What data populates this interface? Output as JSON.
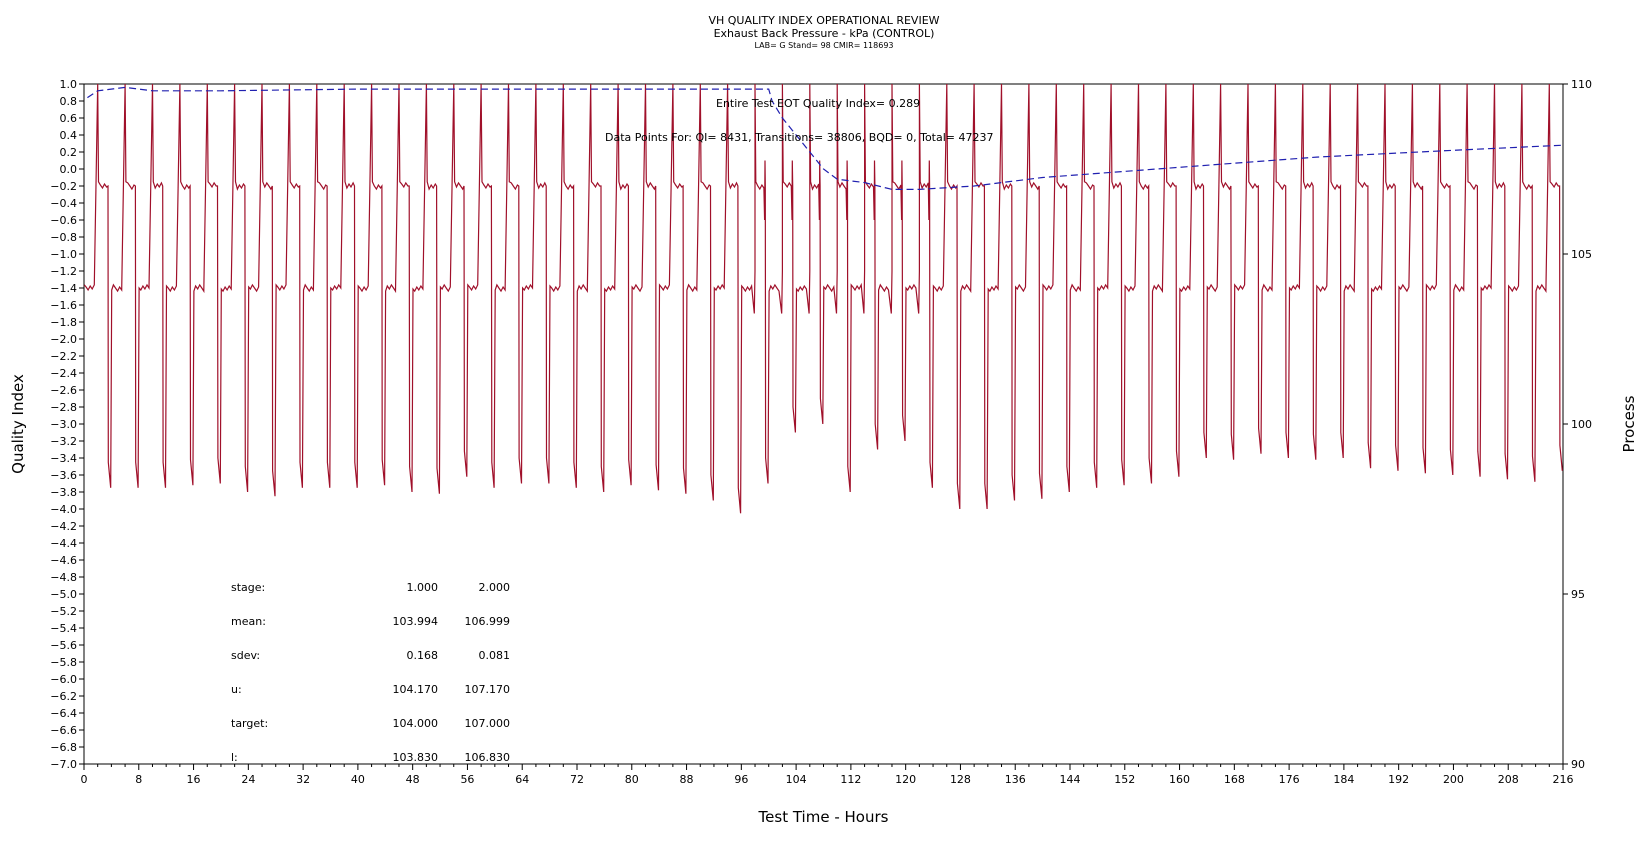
{
  "header": {
    "title": "VH QUALITY INDEX OPERATIONAL REVIEW",
    "subtitle": "Exhaust Back Pressure - kPa (CONTROL)",
    "info": "LAB= G Stand= 98 CMIR= 118693"
  },
  "chart_data": {
    "type": "line",
    "xlabel": "Test Time - Hours",
    "ylabel": "Quality Index",
    "y2label": "Process",
    "xlim": [
      0,
      216
    ],
    "ylim": [
      -7.0,
      1.0
    ],
    "y2lim": [
      90,
      110
    ],
    "xticks": [
      "0",
      "8",
      "16",
      "24",
      "32",
      "40",
      "48",
      "56",
      "64",
      "72",
      "80",
      "88",
      "96",
      "104",
      "112",
      "120",
      "128",
      "136",
      "144",
      "152",
      "160",
      "168",
      "176",
      "184",
      "192",
      "200",
      "208",
      "216"
    ],
    "yticks": [
      "1.0",
      "0.8",
      "0.6",
      "0.4",
      "0.2",
      "0.0",
      "-0.2",
      "-0.4",
      "-0.6",
      "-0.8",
      "-1.0",
      "-1.2",
      "-1.4",
      "-1.6",
      "-1.8",
      "-2.0",
      "-2.2",
      "-2.4",
      "-2.6",
      "-2.8",
      "-3.0",
      "-3.2",
      "-3.4",
      "-3.6",
      "-3.8",
      "-4.0",
      "-4.2",
      "-4.4",
      "-4.6",
      "-4.8",
      "-5.0",
      "-5.2",
      "-5.4",
      "-5.6",
      "-5.8",
      "-6.0",
      "-6.2",
      "-6.4",
      "-6.6",
      "-6.8",
      "-7.0"
    ],
    "y2ticks": [
      "110",
      "105",
      "100",
      "95",
      "90"
    ],
    "annotations": {
      "eot": "Entire Test EOT Quality Index=   0.289",
      "points": "Data Points For: QI=  8431, Transitions= 38806, BQD=     0, Total= 47237"
    },
    "series": [
      {
        "axis": "left",
        "color": "#a0102a",
        "cycle_hours": 4.0,
        "stage1_level": -1.4,
        "stage2_level": -0.2,
        "peak": 1.0,
        "cycles": [
          {
            "x": 0,
            "low": -3.75
          },
          {
            "x": 4,
            "low": -3.75
          },
          {
            "x": 8,
            "low": -3.75
          },
          {
            "x": 12,
            "low": -3.72
          },
          {
            "x": 16,
            "low": -3.7
          },
          {
            "x": 20,
            "low": -3.8
          },
          {
            "x": 24,
            "low": -3.85
          },
          {
            "x": 28,
            "low": -3.75
          },
          {
            "x": 32,
            "low": -3.75
          },
          {
            "x": 36,
            "low": -3.75
          },
          {
            "x": 40,
            "low": -3.72
          },
          {
            "x": 44,
            "low": -3.8
          },
          {
            "x": 48,
            "low": -3.82
          },
          {
            "x": 52,
            "low": -3.62
          },
          {
            "x": 56,
            "low": -3.75
          },
          {
            "x": 60,
            "low": -3.7
          },
          {
            "x": 64,
            "low": -3.7
          },
          {
            "x": 68,
            "low": -3.75
          },
          {
            "x": 72,
            "low": -3.8
          },
          {
            "x": 76,
            "low": -3.72
          },
          {
            "x": 80,
            "low": -3.78
          },
          {
            "x": 84,
            "low": -3.82
          },
          {
            "x": 88,
            "low": -3.9
          },
          {
            "x": 92,
            "low": -4.05
          },
          {
            "x": 96,
            "low": -3.7
          },
          {
            "x": 100,
            "low": -3.1
          },
          {
            "x": 104,
            "low": -3.0
          },
          {
            "x": 108,
            "low": -3.8
          },
          {
            "x": 112,
            "low": -3.3
          },
          {
            "x": 116,
            "low": -3.2
          },
          {
            "x": 120,
            "low": -3.75
          },
          {
            "x": 124,
            "low": -4.0
          },
          {
            "x": 128,
            "low": -4.0
          },
          {
            "x": 132,
            "low": -3.9
          },
          {
            "x": 136,
            "low": -3.88
          },
          {
            "x": 140,
            "low": -3.8
          },
          {
            "x": 144,
            "low": -3.75
          },
          {
            "x": 148,
            "low": -3.72
          },
          {
            "x": 152,
            "low": -3.7
          },
          {
            "x": 156,
            "low": -3.62
          },
          {
            "x": 160,
            "low": -3.4
          },
          {
            "x": 164,
            "low": -3.42
          },
          {
            "x": 168,
            "low": -3.35
          },
          {
            "x": 172,
            "low": -3.4
          },
          {
            "x": 176,
            "low": -3.42
          },
          {
            "x": 180,
            "low": -3.4
          },
          {
            "x": 184,
            "low": -3.52
          },
          {
            "x": 188,
            "low": -3.55
          },
          {
            "x": 192,
            "low": -3.58
          },
          {
            "x": 196,
            "low": -3.6
          },
          {
            "x": 200,
            "low": -3.62
          },
          {
            "x": 204,
            "low": -3.65
          },
          {
            "x": 208,
            "low": -3.68
          },
          {
            "x": 212,
            "low": -3.55
          }
        ]
      },
      {
        "axis": "right",
        "color": "#2020b0",
        "style": "dashed",
        "points": [
          [
            0.5,
            109.6
          ],
          [
            2,
            109.8
          ],
          [
            6,
            109.9
          ],
          [
            10,
            109.8
          ],
          [
            20,
            109.8
          ],
          [
            40,
            109.85
          ],
          [
            60,
            109.85
          ],
          [
            90,
            109.85
          ],
          [
            100,
            109.85
          ],
          [
            100.5,
            109.5
          ],
          [
            102,
            109.0
          ],
          [
            104,
            108.5
          ],
          [
            106,
            108.0
          ],
          [
            108,
            107.5
          ],
          [
            110,
            107.2
          ],
          [
            114,
            107.1
          ],
          [
            118,
            106.9
          ],
          [
            122,
            106.9
          ],
          [
            130,
            107.0
          ],
          [
            140,
            107.25
          ],
          [
            160,
            107.55
          ],
          [
            180,
            107.85
          ],
          [
            200,
            108.05
          ],
          [
            216,
            108.2
          ]
        ]
      }
    ],
    "stats_table": {
      "rows": [
        {
          "label": "stage:",
          "v1": "1.000",
          "v2": "2.000"
        },
        {
          "label": "mean:",
          "v1": "103.994",
          "v2": "106.999"
        },
        {
          "label": "sdev:",
          "v1": "0.168",
          "v2": "0.081"
        },
        {
          "label": "u:",
          "v1": "104.170",
          "v2": "107.170"
        },
        {
          "label": "target:",
          "v1": "104.000",
          "v2": "107.000"
        },
        {
          "label": "l:",
          "v1": "103.830",
          "v2": "106.830"
        }
      ]
    }
  }
}
